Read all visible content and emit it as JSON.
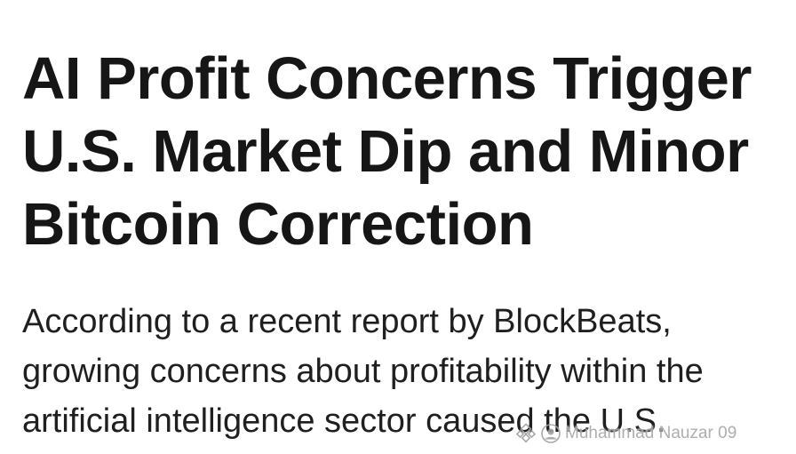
{
  "article": {
    "headline_lines": [
      "AI Profit Concerns Trigger",
      "U.S. Market Dip and Minor",
      "Bitcoin Correction"
    ],
    "body_lines": [
      "According to a recent report by BlockBeats,",
      "growing concerns about profitability within the",
      "artificial intelligence sector caused the U.S."
    ]
  },
  "watermark": {
    "icon": "binance-square-icon",
    "text": "Muhammad Nauzar 09"
  },
  "colors": {
    "background": "#ffffff",
    "headline": "#161616",
    "body": "#1f1f1f",
    "watermark": "#a0a0a0"
  }
}
